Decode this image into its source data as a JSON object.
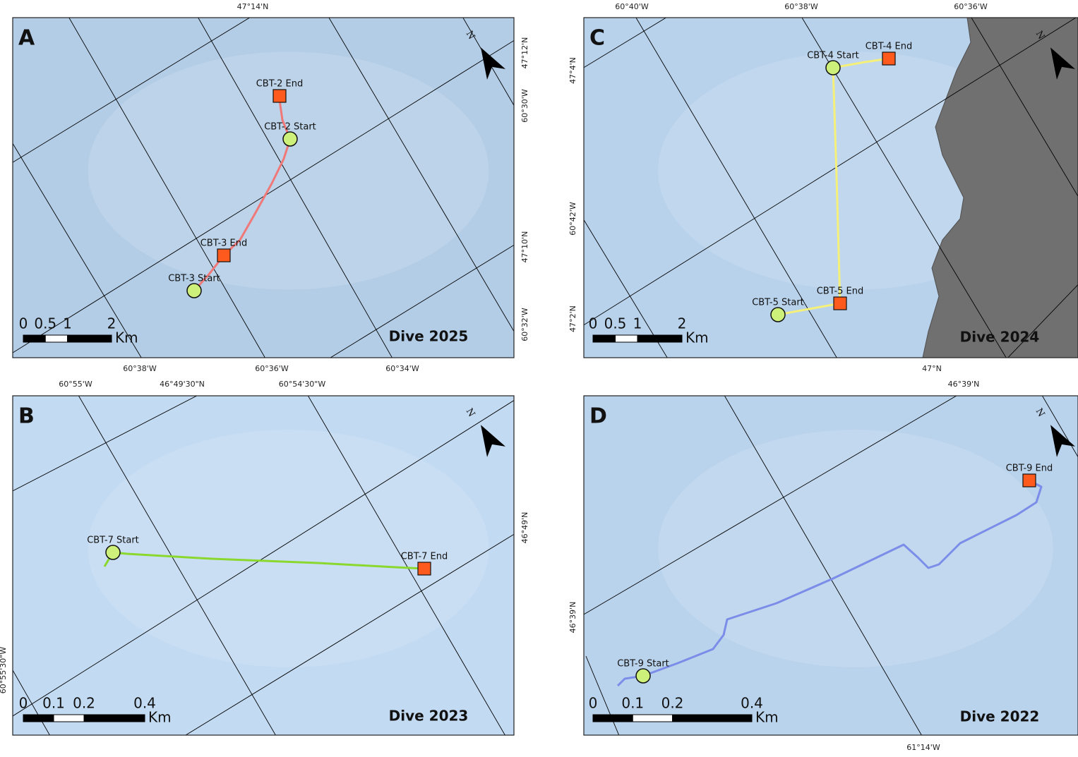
{
  "panels": [
    {
      "letter": "A",
      "dive_label": "Dive 2025",
      "north": "N",
      "sites": [
        "CBT-2 End",
        "CBT-2 Start",
        "CBT-3 End",
        "CBT-3 Start"
      ],
      "scale": {
        "ticks": [
          0,
          0.5,
          1,
          2
        ],
        "unit": "Km"
      },
      "coordinates": [
        "47°14'N",
        "47°12'N",
        "60°30'W",
        "47°10'N",
        "60°32'W",
        "60°38'W",
        "60°36'W",
        "60°34'W"
      ]
    },
    {
      "letter": "B",
      "dive_label": "Dive 2023",
      "north": "N",
      "sites": [
        "CBT-7 Start",
        "CBT-7 End"
      ],
      "scale": {
        "ticks": [
          0,
          0.1,
          0.2,
          0.4
        ],
        "unit": "Km"
      },
      "coordinates": [
        "60°55'W",
        "46°49'30\"N",
        "60°54'30\"W",
        "46°49'N",
        "60°55'30\"W"
      ]
    },
    {
      "letter": "C",
      "dive_label": "Dive 2024",
      "north": "N",
      "sites": [
        "CBT-4 Start",
        "CBT-4 End",
        "CBT-5 Start",
        "CBT-5 End"
      ],
      "scale": {
        "ticks": [
          0,
          0.5,
          1,
          2
        ],
        "unit": "Km"
      },
      "coordinates": [
        "60°40'W",
        "60°38'W",
        "60°36'W",
        "47°4'N",
        "60°42'W",
        "47°2'N",
        "47°N"
      ]
    },
    {
      "letter": "D",
      "dive_label": "Dive 2022",
      "north": "N",
      "sites": [
        "CBT-9 Start",
        "CBT-9 End"
      ],
      "scale": {
        "ticks": [
          0,
          0.1,
          0.2,
          0.4
        ],
        "unit": "Km"
      },
      "coordinates": [
        "46°39'N",
        "46°39'N",
        "61°14'W"
      ]
    }
  ]
}
